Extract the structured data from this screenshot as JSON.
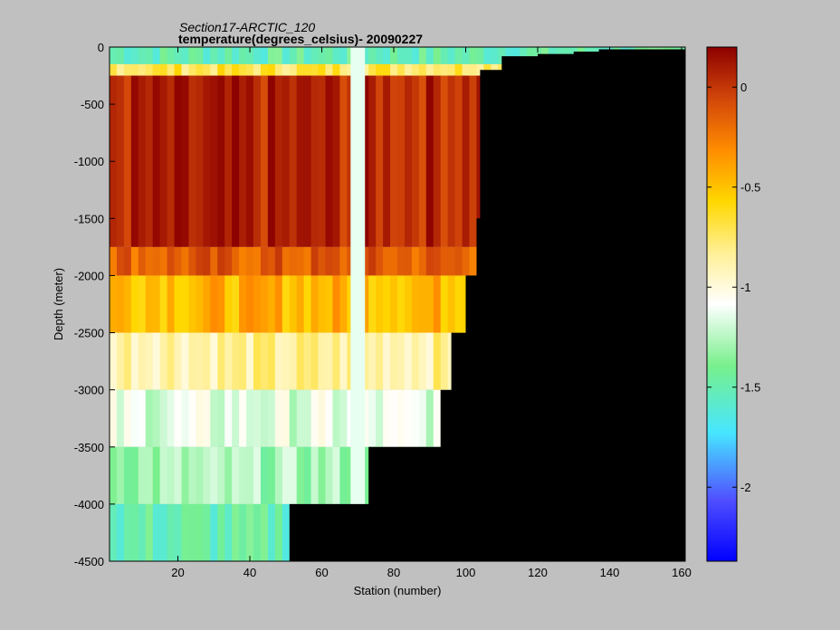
{
  "chart_data": {
    "type": "heatmap",
    "title": "Section17-ARCTIC_120",
    "subtitle": "temperature(degrees_celsius)- 20090227",
    "xlabel": "Station (number)",
    "ylabel": "Depth (meter)",
    "xlim": [
      1,
      161
    ],
    "ylim": [
      -4500,
      0
    ],
    "xticks": [
      20,
      40,
      60,
      80,
      100,
      120,
      140,
      160
    ],
    "yticks": [
      0,
      -500,
      -1000,
      -1500,
      -2000,
      -2500,
      -3000,
      -3500,
      -4000,
      -4500
    ],
    "colorbar": {
      "range": [
        -2.37,
        0.2
      ],
      "ticks": [
        0,
        -0.5,
        -1,
        -1.5,
        -2
      ],
      "colormap": "jet-white-center"
    },
    "bathymetry_bottom_depth": {
      "stations": [
        1,
        50,
        51,
        70,
        73,
        89,
        93,
        96,
        100,
        103,
        104,
        110,
        120,
        130,
        137,
        161
      ],
      "depth": [
        -4500,
        -4500,
        -4000,
        -4000,
        -3500,
        -3500,
        -3000,
        -2500,
        -2000,
        -1500,
        -200,
        -80,
        -60,
        -40,
        -20,
        0
      ]
    },
    "gap_station_band": [
      68,
      72
    ],
    "depth_layers": [
      {
        "depth": [
          0,
          -150
        ],
        "temperature": -1.5
      },
      {
        "depth": [
          -150,
          -250
        ],
        "temperature": -0.7
      },
      {
        "depth": [
          -250,
          -1750
        ],
        "temperature": 0.05
      },
      {
        "depth": [
          -1750,
          -2000
        ],
        "temperature": -0.15
      },
      {
        "depth": [
          -2000,
          -2500
        ],
        "temperature": -0.45
      },
      {
        "depth": [
          -2500,
          -3000
        ],
        "temperature": -0.85
      },
      {
        "depth": [
          -3000,
          -3500
        ],
        "temperature": -1.15
      },
      {
        "depth": [
          -3500,
          -4000
        ],
        "temperature": -1.3
      },
      {
        "depth": [
          -4000,
          -4500
        ],
        "temperature": -1.5
      }
    ],
    "grid": false
  }
}
